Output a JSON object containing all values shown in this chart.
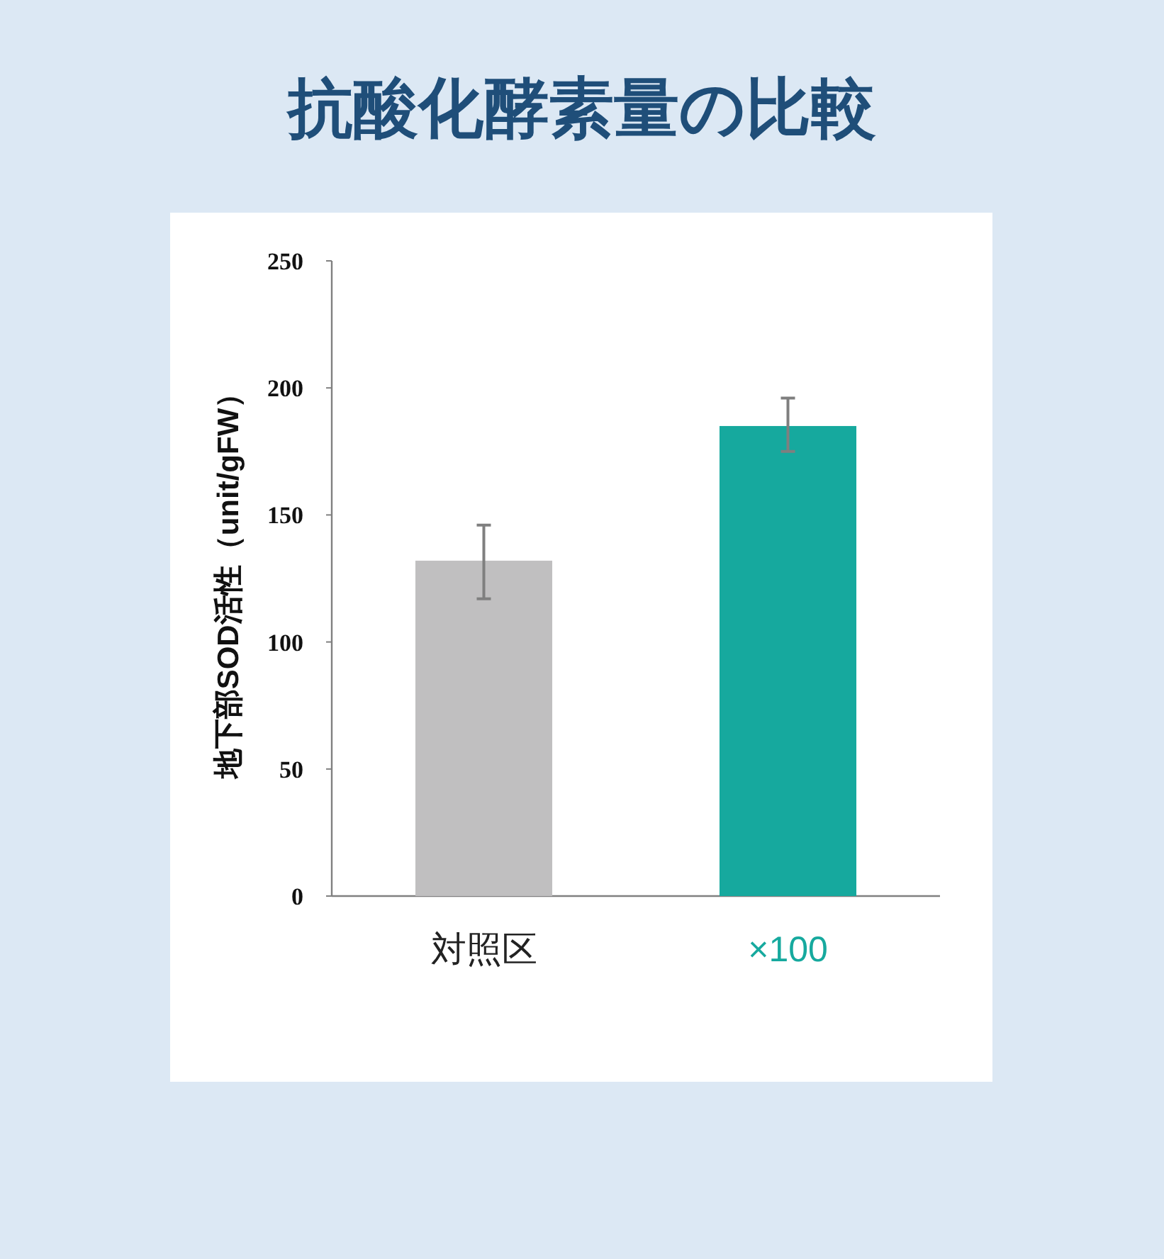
{
  "chart_data": {
    "type": "bar",
    "title": "抗酸化酵素量の比較",
    "ylabel": "地下部SOD活性（unit/gFW）",
    "categories": [
      "対照区",
      "×100"
    ],
    "values": [
      132,
      185
    ],
    "colors": [
      "#c0bfc0",
      "#16a99e"
    ],
    "errors": [
      [
        117,
        146
      ],
      [
        175,
        196
      ]
    ],
    "ylim": [
      0,
      250
    ],
    "yticks": [
      0,
      50,
      100,
      150,
      200,
      250
    ]
  }
}
